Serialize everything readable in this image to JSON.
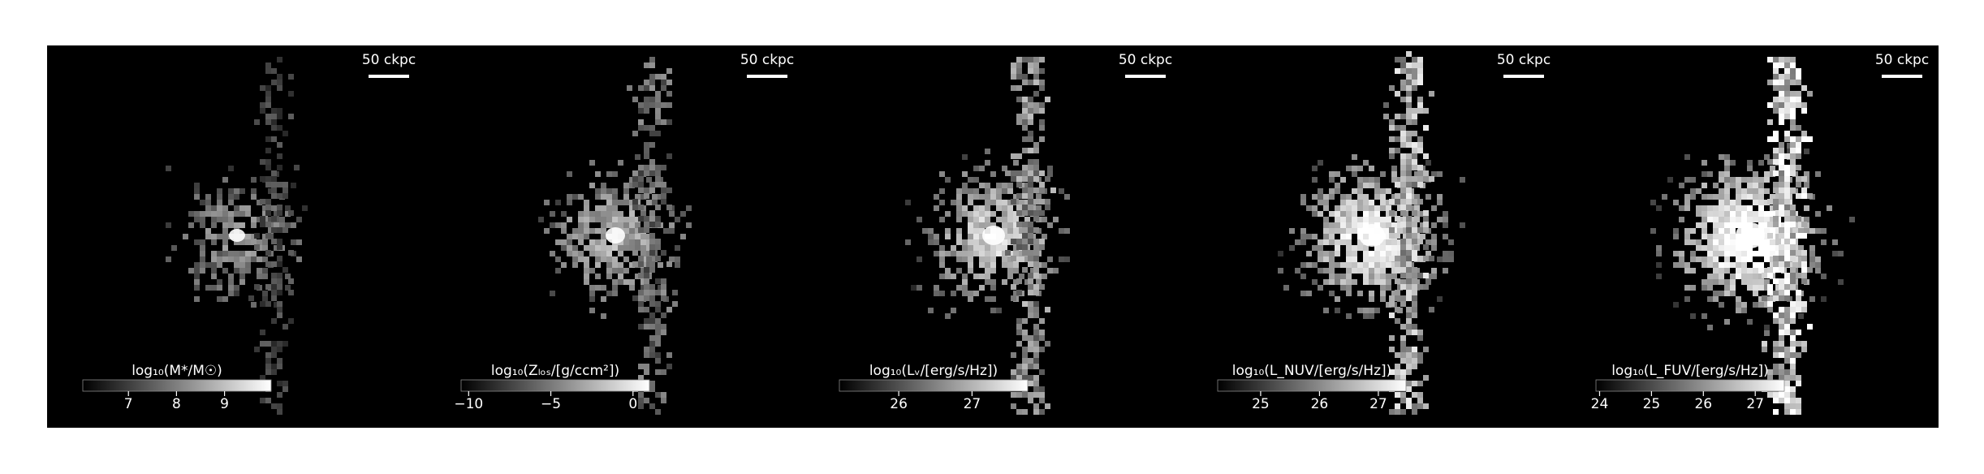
{
  "chart_data": [
    {
      "type": "image",
      "colorbar": {
        "label": "log₁₀(M*/M☉)",
        "clim": [
          6.05,
          9.97
        ],
        "ticks": [
          7,
          8,
          9
        ]
      },
      "scalebar_label": "50 ckpc"
    },
    {
      "type": "image",
      "colorbar": {
        "label": "log₁₀(Zₗₒₛ/[g/ccm²])",
        "clim": [
          -10.46,
          1.0
        ],
        "ticks": [
          {
            "value": -10,
            "label": "−10"
          },
          {
            "value": -5,
            "label": "−5"
          },
          0
        ]
      },
      "scalebar_label": "50 ckpc"
    },
    {
      "type": "image",
      "colorbar": {
        "label": "log₁₀(Lᵥ/[erg/s/Hz])",
        "clim": [
          25.19,
          27.76
        ],
        "ticks": [
          26,
          27
        ]
      },
      "scalebar_label": "50 ckpc"
    },
    {
      "type": "image",
      "colorbar": {
        "label": "log₁₀(L_NUV/[erg/s/Hz])",
        "clim": [
          24.27,
          27.47
        ],
        "ticks": [
          25,
          26,
          27
        ]
      },
      "scalebar_label": "50 ckpc"
    },
    {
      "type": "image",
      "colorbar": {
        "label": "log₁₀(L_FUV/[erg/s/Hz])",
        "clim": [
          23.93,
          27.56
        ],
        "ticks": [
          24,
          25,
          26,
          27
        ]
      },
      "scalebar_label": "50 ckpc"
    }
  ]
}
